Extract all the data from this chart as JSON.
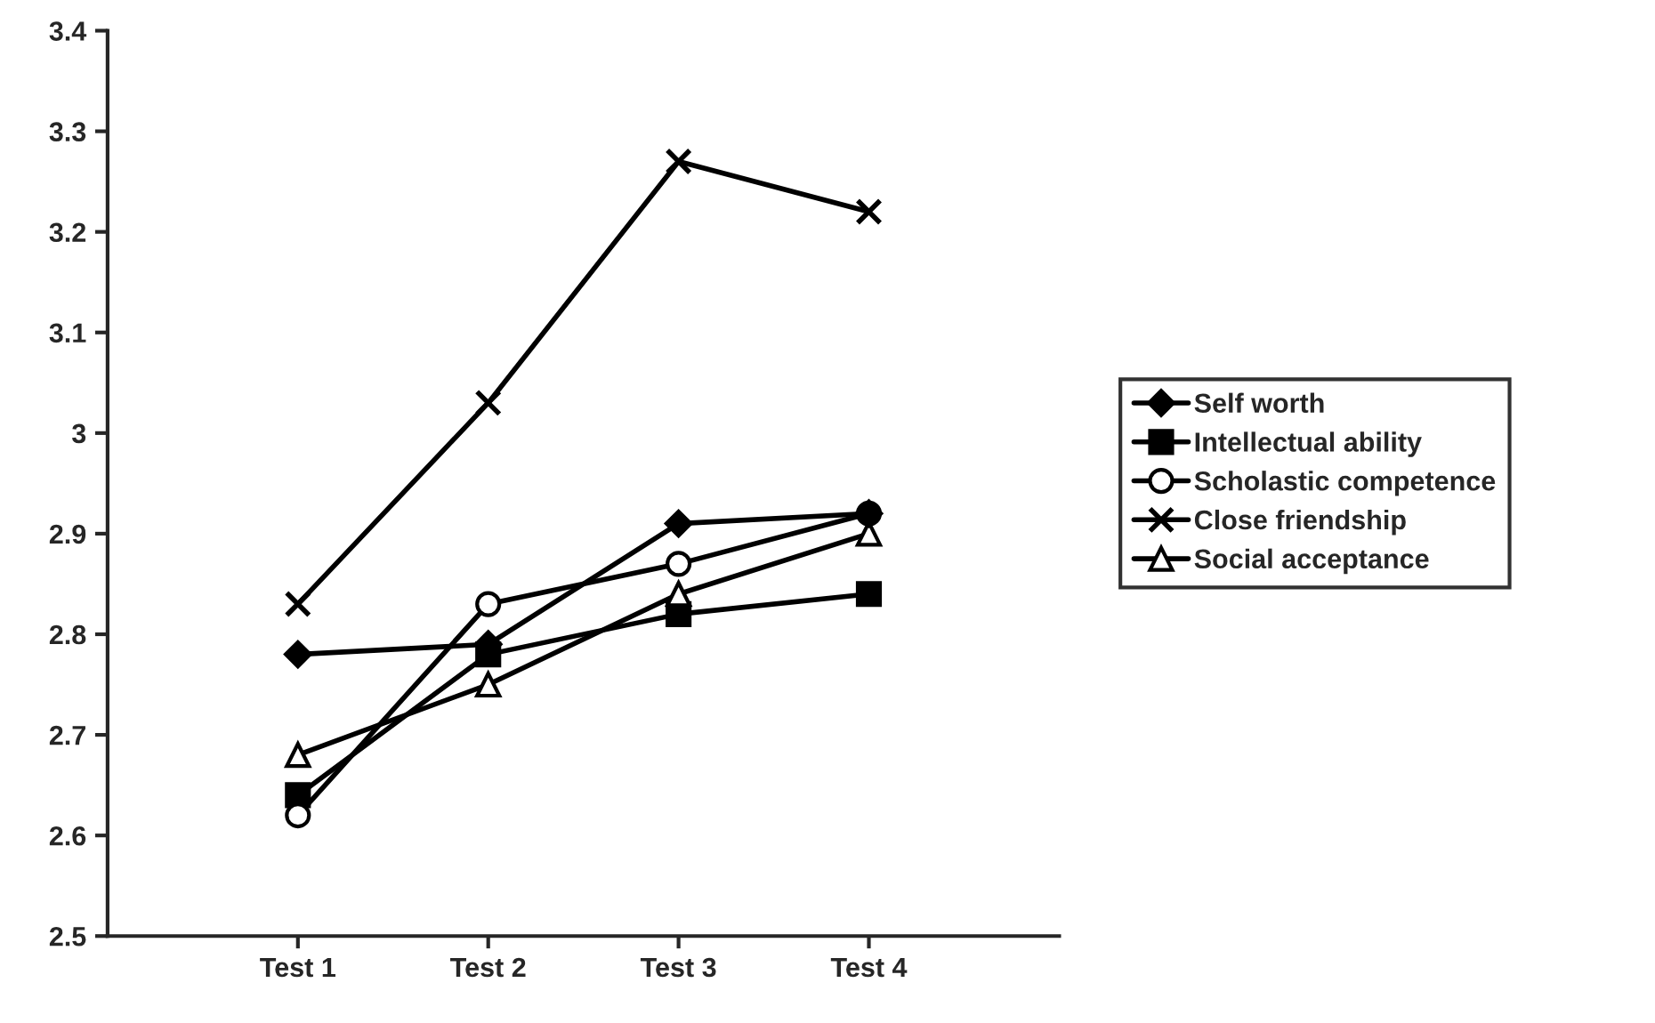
{
  "chart_data": {
    "type": "line",
    "categories": [
      "Test 1",
      "Test 2",
      "Test 3",
      "Test 4"
    ],
    "series": [
      {
        "name": "Self worth",
        "color": "#000000",
        "marker": "diamond",
        "values": [
          2.78,
          2.79,
          2.91,
          2.92
        ]
      },
      {
        "name": "Intellectual ability",
        "color": "#000000",
        "marker": "square",
        "values": [
          2.64,
          2.78,
          2.82,
          2.84
        ]
      },
      {
        "name": "Scholastic competence",
        "color": "#000000",
        "marker": "circle",
        "values": [
          2.62,
          2.83,
          2.87,
          2.92
        ]
      },
      {
        "name": "Close friendship",
        "color": "#000000",
        "marker": "cross",
        "values": [
          2.83,
          3.03,
          3.27,
          3.22
        ]
      },
      {
        "name": "Social acceptance",
        "color": "#000000",
        "marker": "triangle",
        "values": [
          2.68,
          2.75,
          2.84,
          2.9
        ]
      }
    ],
    "ylim": [
      2.5,
      3.4
    ],
    "yticks": [
      2.5,
      2.6,
      2.7,
      2.8,
      2.9,
      3,
      3.1,
      3.2,
      3.3,
      3.4
    ],
    "grid": false,
    "legend": "right",
    "line_style": "solid"
  }
}
